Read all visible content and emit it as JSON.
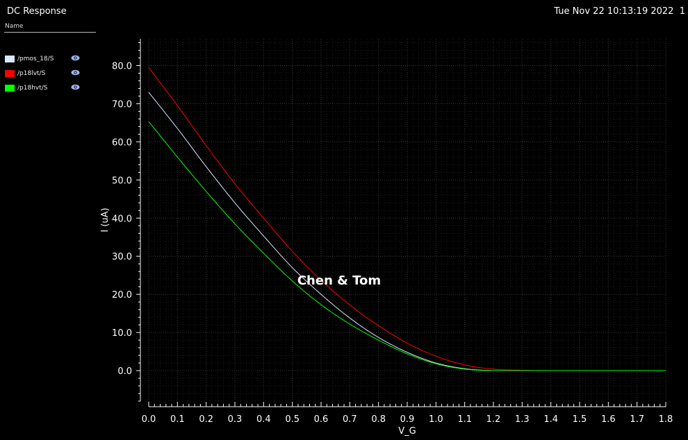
{
  "window": {
    "title": "DC Response",
    "timestamp": "Tue Nov 22 10:13:19 2022",
    "page": "1"
  },
  "legend": {
    "header": "Name",
    "items": [
      {
        "label": "/pmos_18/S",
        "color": "#dde6ff",
        "icon": "eye-icon"
      },
      {
        "label": "/p18lvt/S",
        "color": "#ff0000",
        "icon": "eye-icon"
      },
      {
        "label": "/p18hvt/S",
        "color": "#00ff00",
        "icon": "eye-icon"
      }
    ]
  },
  "watermark": "Chen & Tom",
  "chart_data": {
    "type": "line",
    "xlabel": "V_G",
    "ylabel": "I (uA)",
    "xlim": [
      0.0,
      1.8
    ],
    "ylim": [
      -8.0,
      87.0
    ],
    "grid": true,
    "legend_position": "top-left",
    "x_ticks": [
      "0.0",
      "0.1",
      "0.2",
      "0.3",
      "0.4",
      "0.5",
      "0.6",
      "0.7",
      "0.8",
      "0.9",
      "1.0",
      "1.1",
      "1.2",
      "1.3",
      "1.4",
      "1.5",
      "1.6",
      "1.7",
      "1.8"
    ],
    "y_ticks": [
      "0.0",
      "10.0",
      "20.0",
      "30.0",
      "40.0",
      "50.0",
      "60.0",
      "70.0",
      "80.0"
    ],
    "x": [
      0.0,
      0.1,
      0.2,
      0.3,
      0.4,
      0.5,
      0.6,
      0.7,
      0.8,
      0.9,
      1.0,
      1.1,
      1.2,
      1.3,
      1.4,
      1.5,
      1.6,
      1.7,
      1.8
    ],
    "series": [
      {
        "name": "/pmos_18/S",
        "color": "#dde6ff",
        "values": [
          73.0,
          63.5,
          53.5,
          44.0,
          35.3,
          27.0,
          20.0,
          13.8,
          8.7,
          4.8,
          2.0,
          0.5,
          0.0,
          0.0,
          0.0,
          0.0,
          0.0,
          0.0,
          0.0
        ]
      },
      {
        "name": "/p18lvt/S",
        "color": "#ff0000",
        "values": [
          79.5,
          69.5,
          59.0,
          49.0,
          40.0,
          31.3,
          23.7,
          17.2,
          11.8,
          7.2,
          3.8,
          1.5,
          0.4,
          0.1,
          0.0,
          0.0,
          0.0,
          0.0,
          0.0
        ]
      },
      {
        "name": "/p18hvt/S",
        "color": "#00ff00",
        "values": [
          65.3,
          56.0,
          47.0,
          38.5,
          30.8,
          23.5,
          17.3,
          12.2,
          8.0,
          4.4,
          1.8,
          0.4,
          0.0,
          0.0,
          0.0,
          0.0,
          0.0,
          0.0,
          0.0
        ]
      }
    ]
  }
}
